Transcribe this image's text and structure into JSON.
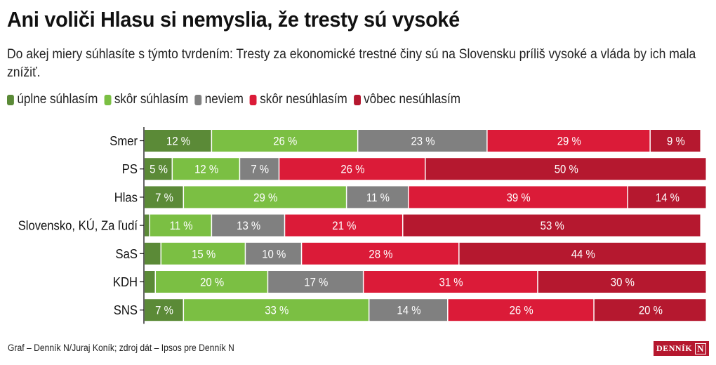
{
  "chart_data": {
    "type": "bar",
    "orientation": "horizontal",
    "stacked": true,
    "normalized": true,
    "title": "Ani voliči Hlasu si nemyslia, že tresty sú vysoké",
    "subtitle": "Do akej miery súhlasíte s týmto tvrdením: Tresty za ekonomické trestné činy sú na Slovensku príliš vysoké a vláda by ich mala znížiť.",
    "xlabel": "",
    "ylabel": "",
    "xlim": [
      0,
      100
    ],
    "grid": false,
    "legend_position": "top-left",
    "value_suffix": " %",
    "label_min_value": 5,
    "categories": [
      "Smer",
      "PS",
      "Hlas",
      "Slovensko, KÚ, Za ľudí",
      "SaS",
      "KDH",
      "SNS"
    ],
    "series": [
      {
        "name": "úplne súhlasím",
        "color": "#5b8a37",
        "values": [
          12,
          5,
          7,
          1,
          3,
          2,
          7
        ]
      },
      {
        "name": "skôr súhlasím",
        "color": "#7bbf43",
        "values": [
          26,
          12,
          29,
          11,
          15,
          20,
          33
        ]
      },
      {
        "name": "neviem",
        "color": "#808080",
        "values": [
          23,
          7,
          11,
          13,
          10,
          17,
          14
        ]
      },
      {
        "name": "skôr nesúhlasím",
        "color": "#db1b38",
        "values": [
          29,
          26,
          39,
          21,
          28,
          31,
          26
        ]
      },
      {
        "name": "vôbec nesúhlasím",
        "color": "#b5182f",
        "values": [
          9,
          50,
          14,
          53,
          44,
          30,
          20
        ]
      }
    ]
  },
  "footer": {
    "source": "Graf – Denník N/Juraj Koník; zdroj dát – Ipsos pre Denník N"
  },
  "logo": {
    "text": "DENNÍK",
    "mark": "N"
  }
}
